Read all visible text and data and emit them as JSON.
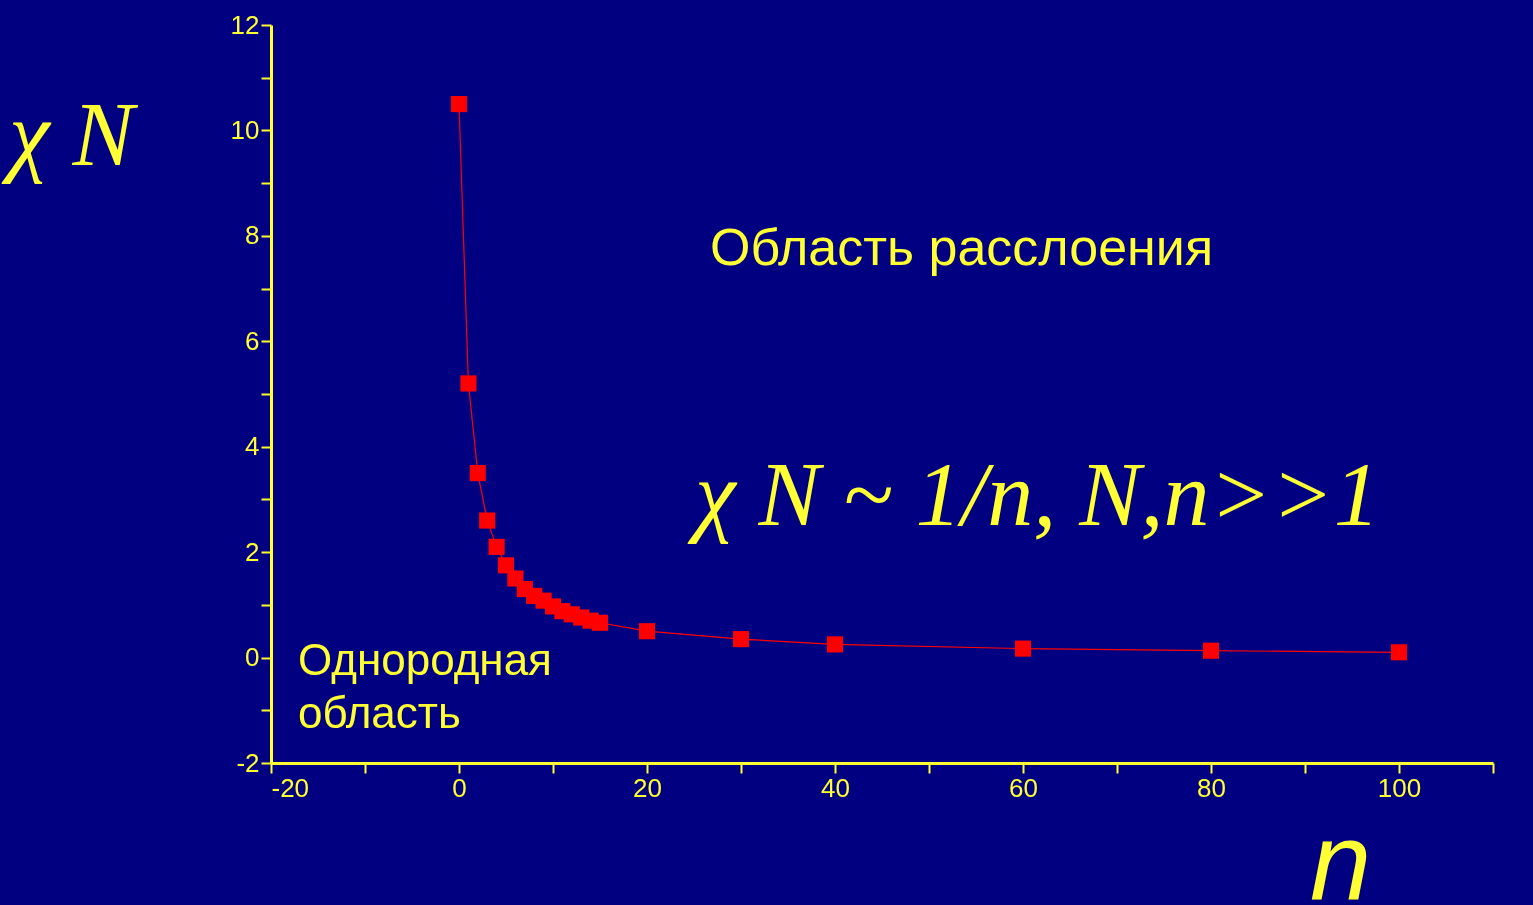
{
  "chart_data": {
    "type": "line",
    "xlabel": "n",
    "ylabel": "χ N",
    "x": [
      0,
      1,
      2,
      3,
      4,
      5,
      6,
      7,
      8,
      9,
      10,
      11,
      12,
      13,
      14,
      15,
      20,
      30,
      40,
      60,
      80,
      100
    ],
    "series": [
      {
        "color": "#ff0000",
        "values": [
          10.5,
          5.2,
          3.5,
          2.6,
          2.1,
          1.75,
          1.5,
          1.3,
          1.17,
          1.08,
          0.97,
          0.88,
          0.82,
          0.76,
          0.7,
          0.66,
          0.5,
          0.35,
          0.25,
          0.17,
          0.13,
          0.1
        ]
      }
    ],
    "marker": "square",
    "line_style": "solid",
    "grid": false,
    "xlim": [
      -20,
      110
    ],
    "ylim": [
      -2,
      12
    ],
    "xticks": [
      -20,
      {
        "value": -10,
        "label": null
      },
      0,
      {
        "value": 10,
        "label": null
      },
      20,
      {
        "value": 30,
        "label": null
      },
      40,
      {
        "value": 50,
        "label": null
      },
      60,
      {
        "value": 70,
        "label": null
      },
      80,
      {
        "value": 90,
        "label": null
      },
      100,
      {
        "value": 110,
        "label": null
      }
    ],
    "yticks": [
      -2,
      {
        "value": -1,
        "label": null
      },
      0,
      {
        "value": 1,
        "label": null
      },
      2,
      {
        "value": 3,
        "label": null
      },
      4,
      {
        "value": 5,
        "label": null
      },
      6,
      {
        "value": 7,
        "label": null
      },
      8,
      {
        "value": 9,
        "label": null
      },
      10,
      {
        "value": 11,
        "label": null
      },
      12
    ],
    "annotations": [
      "Область расслоения",
      "χ N ~ 1/n, N,n>>1",
      "Однородная\nобласть"
    ]
  }
}
